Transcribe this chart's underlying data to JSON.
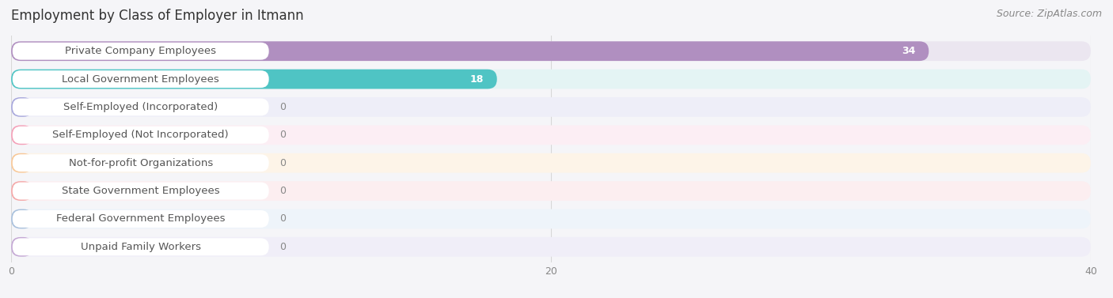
{
  "title": "Employment by Class of Employer in Itmann",
  "source": "Source: ZipAtlas.com",
  "categories": [
    "Private Company Employees",
    "Local Government Employees",
    "Self-Employed (Incorporated)",
    "Self-Employed (Not Incorporated)",
    "Not-for-profit Organizations",
    "State Government Employees",
    "Federal Government Employees",
    "Unpaid Family Workers"
  ],
  "values": [
    34,
    18,
    0,
    0,
    0,
    0,
    0,
    0
  ],
  "bar_colors": [
    "#b08fc0",
    "#4fc4c4",
    "#a8a8dc",
    "#f4a0b8",
    "#f8c898",
    "#f4a8a8",
    "#a8c0dc",
    "#c4a8d4"
  ],
  "bar_bg_colors": [
    "#ebe6f0",
    "#e4f4f4",
    "#eeeef8",
    "#fceef4",
    "#fdf4e8",
    "#fceef0",
    "#eef4fa",
    "#f0eef8"
  ],
  "label_bg_color": "#ffffff",
  "xlim": [
    0,
    40
  ],
  "xticks": [
    0,
    20,
    40
  ],
  "title_fontsize": 12,
  "source_fontsize": 9,
  "label_fontsize": 9.5,
  "value_fontsize": 9,
  "background_color": "#f5f5f8",
  "grid_color": "#d8d8d8",
  "label_text_color": "#555555",
  "value_text_color_inside": "#ffffff",
  "value_text_color_outside": "#888888"
}
